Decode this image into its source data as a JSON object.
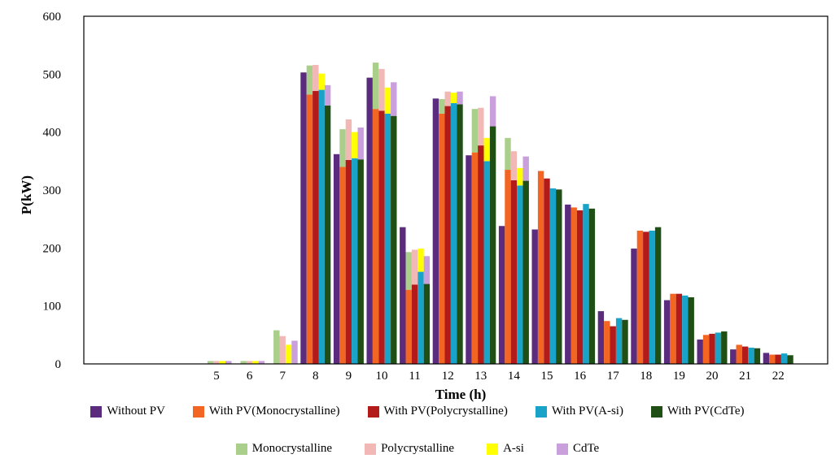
{
  "chart_data": {
    "type": "bar",
    "xlabel": "Time (h)",
    "ylabel": "P(kW)",
    "ylim": [
      0,
      600
    ],
    "yticks": [
      0,
      100,
      200,
      300,
      400,
      500,
      600
    ],
    "categories": [
      "5",
      "6",
      "7",
      "8",
      "9",
      "10",
      "11",
      "12",
      "13",
      "14",
      "15",
      "16",
      "17",
      "18",
      "19",
      "20",
      "21",
      "22"
    ],
    "series": [
      {
        "name": "Without PV",
        "color": "#5b2c7d",
        "values": [
          0,
          0,
          0,
          503,
          362,
          494,
          236,
          458,
          360,
          238,
          232,
          275,
          91,
          199,
          110,
          42,
          25,
          19
        ]
      },
      {
        "name": "With PV(Monocrystalline)",
        "color": "#f26522",
        "values": [
          0,
          0,
          0,
          465,
          340,
          440,
          128,
          432,
          365,
          335,
          333,
          270,
          74,
          230,
          121,
          50,
          33,
          16
        ]
      },
      {
        "name": "With PV(Polycrystalline)",
        "color": "#b31b1b",
        "values": [
          0,
          0,
          0,
          471,
          352,
          437,
          137,
          445,
          377,
          317,
          320,
          265,
          65,
          228,
          121,
          52,
          30,
          16
        ]
      },
      {
        "name": "With PV(A-si)",
        "color": "#1aa3c8",
        "values": [
          0,
          0,
          0,
          473,
          355,
          432,
          159,
          450,
          350,
          308,
          303,
          276,
          79,
          230,
          118,
          54,
          28,
          18
        ]
      },
      {
        "name": "With PV(CdTe)",
        "color": "#1f4f15",
        "values": [
          0,
          0,
          0,
          446,
          353,
          428,
          138,
          448,
          410,
          316,
          301,
          268,
          76,
          236,
          115,
          56,
          27,
          15
        ]
      }
    ],
    "pv_generation": [
      {
        "name": "Monocrystalline",
        "color": "#a9cf8b",
        "values": [
          5,
          5,
          58,
          50,
          65,
          80,
          65,
          25,
          75,
          55,
          0,
          0,
          0,
          0,
          0,
          0,
          0,
          0
        ]
      },
      {
        "name": "Polycrystalline",
        "color": "#f2b8b5",
        "values": [
          5,
          5,
          48,
          45,
          70,
          72,
          60,
          25,
          65,
          50,
          0,
          0,
          0,
          0,
          0,
          0,
          0,
          0
        ]
      },
      {
        "name": "A-si",
        "color": "#ffff00",
        "values": [
          5,
          5,
          33,
          28,
          45,
          45,
          40,
          18,
          40,
          30,
          0,
          0,
          0,
          0,
          0,
          0,
          0,
          0
        ]
      },
      {
        "name": "CdTe",
        "color": "#c9a0dc",
        "values": [
          5,
          5,
          40,
          35,
          55,
          58,
          48,
          22,
          52,
          42,
          0,
          0,
          0,
          0,
          0,
          0,
          0,
          0
        ]
      }
    ]
  }
}
